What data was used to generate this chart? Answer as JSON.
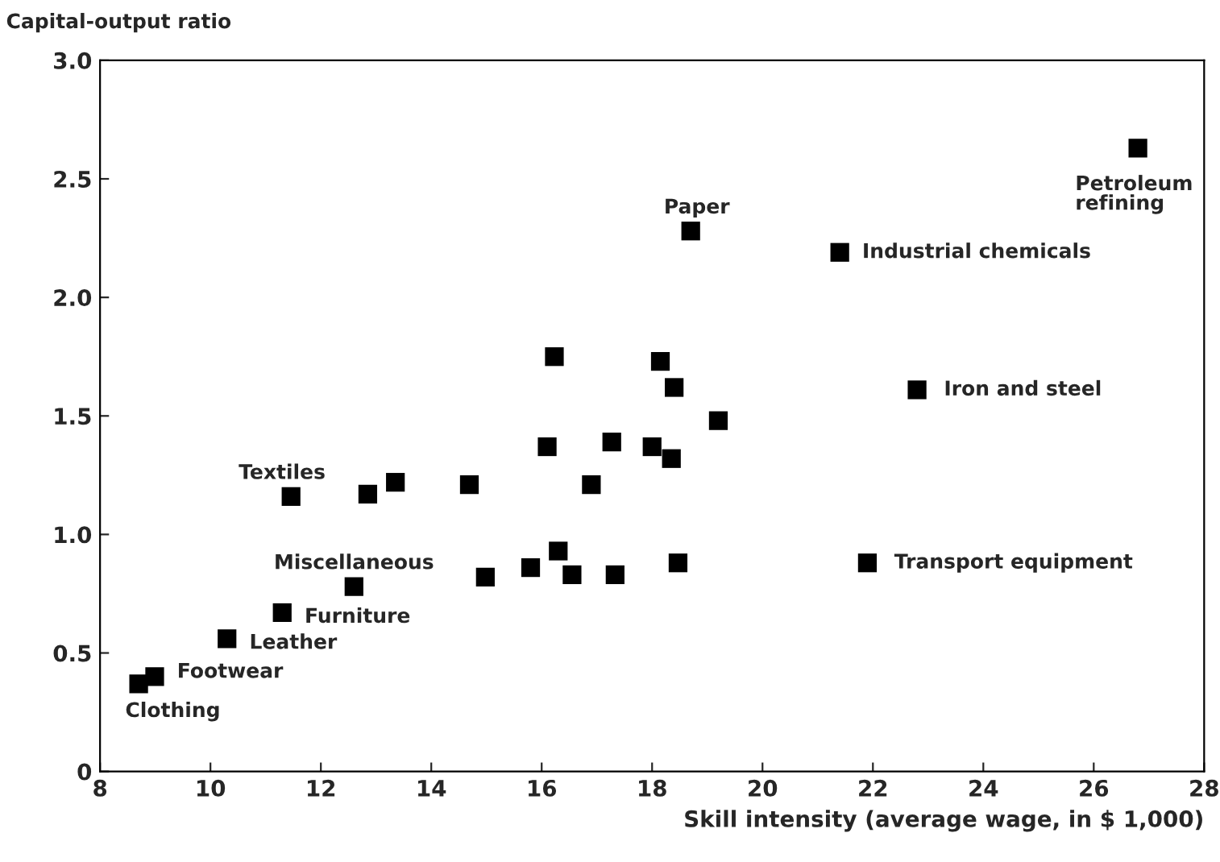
{
  "chart_data": {
    "type": "scatter",
    "xlabel": "Skill intensity (average wage, in $ 1,000)",
    "ylabel": "Capital-output ratio",
    "marker": "square",
    "grid": false,
    "series": [
      {
        "color": "#000000",
        "x": [
          26.8,
          18.7,
          21.4,
          22.8,
          21.9,
          11.46,
          12.6,
          11.3,
          10.3,
          8.99,
          8.7,
          16.23,
          18.15,
          18.4,
          19.2,
          18.0,
          16.1,
          17.27,
          18.35,
          12.85,
          13.35,
          14.69,
          16.9,
          16.3,
          15.8,
          14.98,
          16.55,
          17.33,
          18.47
        ],
        "values": [
          2.63,
          2.28,
          2.19,
          1.61,
          0.88,
          1.16,
          0.78,
          0.67,
          0.56,
          0.4,
          0.37,
          1.75,
          1.73,
          1.62,
          1.48,
          1.37,
          1.37,
          1.39,
          1.32,
          1.17,
          1.22,
          1.21,
          1.21,
          0.93,
          0.86,
          0.82,
          0.83,
          0.83,
          0.88
        ]
      }
    ],
    "annotations": [
      {
        "text": "Petroleum\nrefining",
        "x": 26.8,
        "y": 2.63
      },
      {
        "text": "Paper",
        "x": 18.7,
        "y": 2.28
      },
      {
        "text": "Industrial chemicals",
        "x": 21.4,
        "y": 2.19
      },
      {
        "text": "Iron and steel",
        "x": 22.8,
        "y": 1.61
      },
      {
        "text": "Transport equipment",
        "x": 21.9,
        "y": 0.88
      },
      {
        "text": "Textiles",
        "x": 11.46,
        "y": 1.16
      },
      {
        "text": "Miscellaneous",
        "x": 12.6,
        "y": 0.78
      },
      {
        "text": "Furniture",
        "x": 11.3,
        "y": 0.67
      },
      {
        "text": "Leather",
        "x": 10.3,
        "y": 0.56
      },
      {
        "text": "Footwear",
        "x": 8.99,
        "y": 0.4
      },
      {
        "text": "Clothing",
        "x": 8.7,
        "y": 0.37
      }
    ],
    "xlim": [
      8,
      28
    ],
    "ylim": [
      0,
      3
    ],
    "xticks": [
      8,
      10,
      12,
      14,
      16,
      18,
      20,
      22,
      24,
      26,
      28
    ],
    "yticks": [
      0,
      0.5,
      {
        "value": 1,
        "label": "1.0"
      },
      1.5,
      {
        "value": 2,
        "label": "2.0"
      },
      2.5,
      {
        "value": 3,
        "label": "3.0"
      }
    ]
  }
}
